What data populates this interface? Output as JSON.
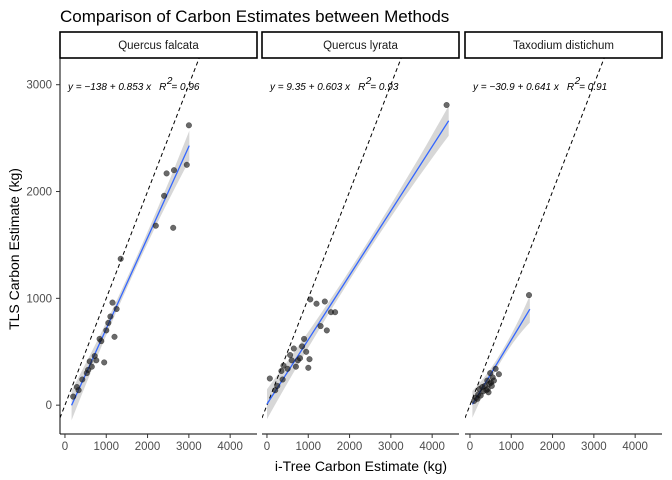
{
  "chart_data": {
    "type": "scatter",
    "title": "Comparison of Carbon Estimates between Methods",
    "xlabel": "i-Tree Carbon Estimate (kg)",
    "ylabel": "TLS Carbon Estimate (kg)",
    "xlim": [
      -120,
      4650
    ],
    "ylim": [
      -270,
      3250
    ],
    "x_ticks": [
      0,
      1000,
      2000,
      3000,
      4000
    ],
    "y_ticks": [
      0,
      1000,
      2000,
      3000
    ],
    "reference_line": "1:1 dashed",
    "colors": {
      "points": "#1a1a1a",
      "fit": "#3366ff",
      "band": "#bdbdbd"
    },
    "panels": [
      {
        "name": "Quercus falcata",
        "equation": "y = −138 + 0.853 x",
        "r2_label": "R",
        "r2_value": "= 0.96",
        "fit": {
          "intercept": -138,
          "slope": 0.853,
          "x_range": [
            160,
            3010
          ]
        },
        "points": [
          [
            200,
            80
          ],
          [
            290,
            170
          ],
          [
            330,
            140
          ],
          [
            420,
            240
          ],
          [
            530,
            300
          ],
          [
            560,
            330
          ],
          [
            600,
            410
          ],
          [
            650,
            360
          ],
          [
            720,
            460
          ],
          [
            760,
            420
          ],
          [
            840,
            620
          ],
          [
            880,
            600
          ],
          [
            950,
            400
          ],
          [
            1000,
            700
          ],
          [
            1050,
            770
          ],
          [
            1100,
            830
          ],
          [
            1150,
            960
          ],
          [
            1200,
            640
          ],
          [
            1250,
            900
          ],
          [
            1350,
            1370
          ],
          [
            2200,
            1680
          ],
          [
            2400,
            1960
          ],
          [
            2460,
            2170
          ],
          [
            2620,
            1660
          ],
          [
            2640,
            2200
          ],
          [
            2950,
            2250
          ],
          [
            3000,
            2620
          ]
        ]
      },
      {
        "name": "Quercus lyrata",
        "equation": "y = 9.35 + 0.603 x",
        "r2_label": "R",
        "r2_value": "= 0.93",
        "fit": {
          "intercept": 9.35,
          "slope": 0.603,
          "x_range": [
            0,
            4400
          ]
        },
        "points": [
          [
            70,
            250
          ],
          [
            200,
            140
          ],
          [
            250,
            180
          ],
          [
            350,
            320
          ],
          [
            380,
            240
          ],
          [
            400,
            370
          ],
          [
            500,
            340
          ],
          [
            560,
            470
          ],
          [
            600,
            420
          ],
          [
            650,
            530
          ],
          [
            700,
            360
          ],
          [
            750,
            420
          ],
          [
            800,
            440
          ],
          [
            850,
            550
          ],
          [
            900,
            620
          ],
          [
            950,
            500
          ],
          [
            1000,
            350
          ],
          [
            1030,
            430
          ],
          [
            1050,
            990
          ],
          [
            1200,
            950
          ],
          [
            1300,
            740
          ],
          [
            1400,
            970
          ],
          [
            1450,
            700
          ],
          [
            1550,
            870
          ],
          [
            1650,
            870
          ],
          [
            4350,
            2810
          ]
        ]
      },
      {
        "name": "Taxodium distichum",
        "equation": "y = −30.9 + 0.641 x",
        "r2_label": "R",
        "r2_value": "= 0.91",
        "fit": {
          "intercept": -30.9,
          "slope": 0.641,
          "x_range": [
            60,
            1450
          ]
        },
        "points": [
          [
            100,
            40
          ],
          [
            150,
            70
          ],
          [
            180,
            60
          ],
          [
            200,
            100
          ],
          [
            230,
            150
          ],
          [
            260,
            90
          ],
          [
            300,
            170
          ],
          [
            320,
            130
          ],
          [
            360,
            180
          ],
          [
            400,
            140
          ],
          [
            420,
            230
          ],
          [
            430,
            150
          ],
          [
            450,
            120
          ],
          [
            470,
            200
          ],
          [
            490,
            300
          ],
          [
            510,
            210
          ],
          [
            530,
            180
          ],
          [
            550,
            260
          ],
          [
            580,
            230
          ],
          [
            620,
            340
          ],
          [
            700,
            290
          ],
          [
            1430,
            1030
          ]
        ]
      }
    ]
  }
}
